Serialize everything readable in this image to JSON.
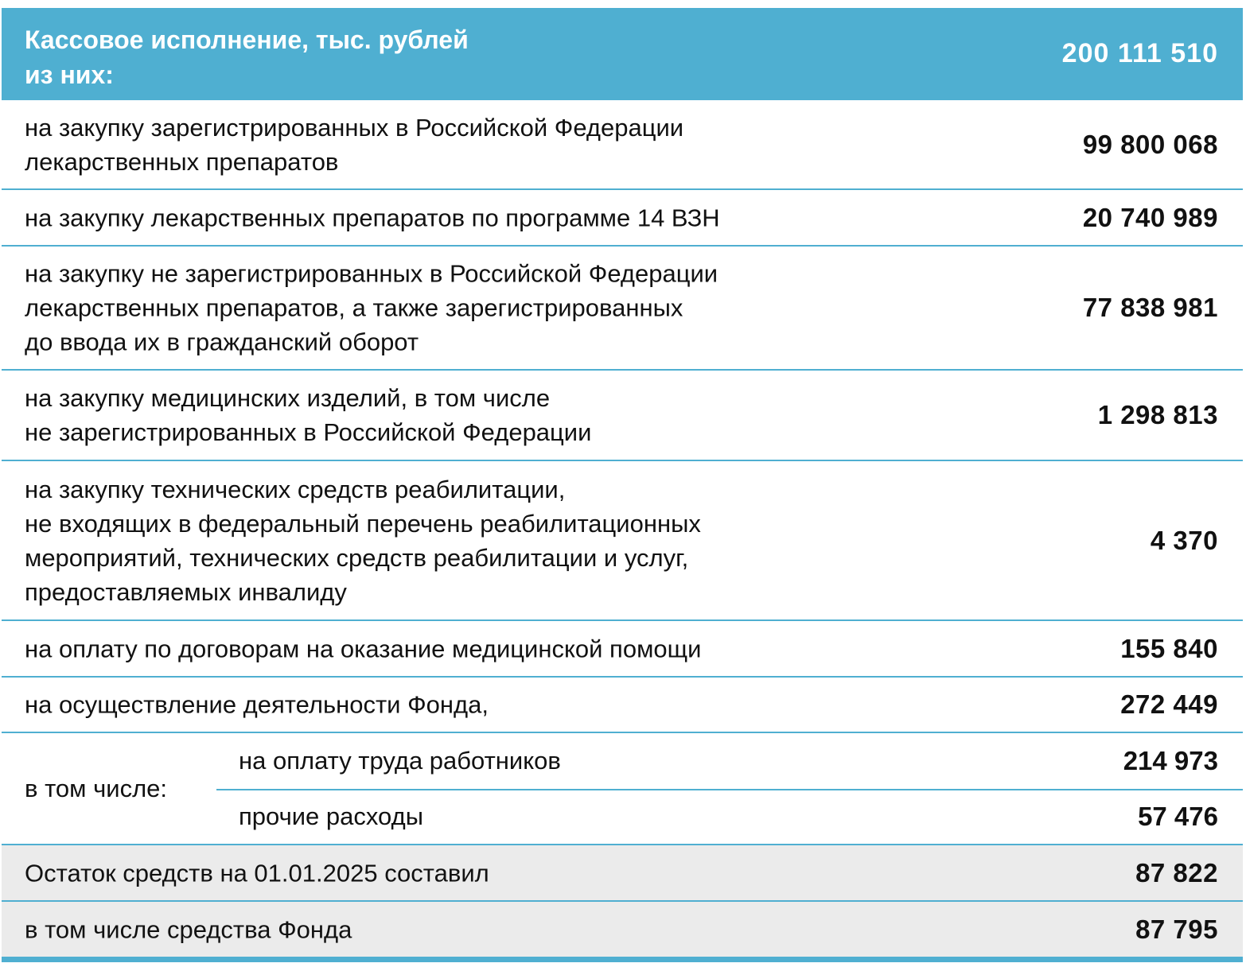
{
  "header": {
    "title": "Кассовое исполнение, тыс. рублей\nиз них:",
    "value": "200 111 510"
  },
  "rows": [
    {
      "label": "на закупку зарегистрированных в Российской Федерации\nлекарственных препаратов",
      "value": "99 800 068"
    },
    {
      "label": "на закупку лекарственных препаратов по программе 14 ВЗН",
      "value": "20 740 989"
    },
    {
      "label": "на закупку не зарегистрированных в Российской Федерации\nлекарственных препаратов, а также зарегистрированных\nдо ввода их в гражданский оборот",
      "value": "77 838 981"
    },
    {
      "label": "на закупку медицинских изделий, в том числе\nне зарегистрированных в Российской Федерации",
      "value": "1 298 813"
    },
    {
      "label": "на закупку технических средств реабилитации,\nне входящих в федеральный перечень реабилитационных\nмероприятий, технических средств реабилитации и услуг,\nпредоставляемых инвалиду",
      "value": "4 370"
    },
    {
      "label": "на оплату по договорам на оказание медицинской помощи",
      "value": "155 840"
    },
    {
      "label": "на осуществление деятельности Фонда,",
      "value": "272 449"
    }
  ],
  "breakdown": {
    "label": "в том числе:",
    "items": [
      {
        "label": "на оплату труда работников",
        "value": "214 973"
      },
      {
        "label": "прочие расходы",
        "value": "57 476"
      }
    ]
  },
  "balance": [
    {
      "label": "Остаток средств на 01.01.2025 составил",
      "value": "87 822"
    },
    {
      "label": "в том числе средства Фонда",
      "value": "87 795"
    }
  ]
}
